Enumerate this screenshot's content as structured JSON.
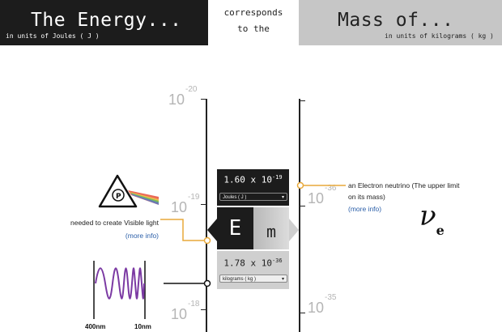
{
  "header": {
    "left_title": "The Energy...",
    "left_units": "in units of Joules ( J )",
    "middle_line1": "corresponds",
    "middle_line2": "to the",
    "right_title": "Mass of...",
    "right_units": "in units of kilograms ( kg )"
  },
  "energy_scale": {
    "ticks": [
      {
        "base": "10",
        "exponent": "-20"
      },
      {
        "base": "10",
        "exponent": "-19"
      },
      {
        "base": "10",
        "exponent": "-18"
      }
    ]
  },
  "mass_scale": {
    "ticks": [
      {
        "base": "10",
        "exponent": "-36"
      },
      {
        "base": "10",
        "exponent": "-35"
      }
    ]
  },
  "converter": {
    "energy_value": "1.60 x 10",
    "energy_exponent": "-19",
    "energy_unit_select": "Joules ( J )",
    "e_symbol": "E",
    "m_symbol": "m",
    "mass_value": "1.78 x 10",
    "mass_exponent": "-36",
    "mass_unit_select": "kilograms ( kg )"
  },
  "energy_annotation": {
    "text": "needed to create Visible light",
    "link": "(more info)",
    "icon": "prism-icon"
  },
  "spectrum_wave": {
    "icon": "wave-icon",
    "label_left": "400nm",
    "label_right": "10nm"
  },
  "mass_annotation": {
    "line1": "an Electron neutrino (The upper limit",
    "line2": "on its mass)",
    "link": "(more info)",
    "symbol": "ν",
    "symbol_sub": "e"
  },
  "colors": {
    "dark_panel": "#1c1c1c",
    "light_panel": "#c6c6c6",
    "marker_line": "#e8a93a",
    "link": "#2a5ea8",
    "scale_label": "#b5b5b5",
    "wave": "#7b3aa3"
  }
}
